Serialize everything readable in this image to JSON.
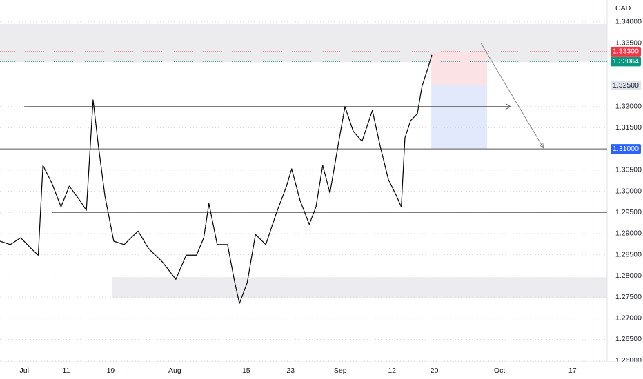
{
  "chart_data": {
    "type": "line",
    "currency": "CAD",
    "color": "#000000",
    "x": [
      -4.7,
      -2.7,
      -0.7,
      1.3,
      2.7,
      3.6,
      5.3,
      7.1,
      8.7,
      10.7,
      12,
      13.3,
      14.3,
      15.6,
      17.3,
      19.3,
      22,
      24,
      26.7,
      29.3,
      31.3,
      33.3,
      34.7,
      35.7,
      37.3,
      39.3,
      40.7,
      41.6,
      43.1,
      44.7,
      46.7,
      48.7,
      50.7,
      51.7,
      53.3,
      55.1,
      56.4,
      57.7,
      59.1,
      60.7,
      62,
      63.6,
      65.3,
      67.3,
      68.9,
      70.4,
      72,
      72.9,
      73.6,
      74.7,
      76,
      76.9,
      78,
      78.8
    ],
    "values": [
      1.2882,
      1.2874,
      1.289,
      1.2865,
      1.2849,
      1.3061,
      1.302,
      1.2963,
      1.3012,
      1.2979,
      1.2955,
      1.3216,
      1.311,
      1.2988,
      1.2882,
      1.2874,
      1.2906,
      1.2865,
      1.2833,
      1.2792,
      1.2849,
      1.2849,
      1.289,
      1.2971,
      1.2874,
      1.2874,
      1.2784,
      1.2735,
      1.2784,
      1.2898,
      1.2874,
      1.2947,
      1.3012,
      1.3053,
      1.2979,
      1.2922,
      1.2963,
      1.3061,
      1.2996,
      1.311,
      1.32,
      1.3142,
      1.3118,
      1.3191,
      1.3102,
      1.3028,
      1.2988,
      1.2963,
      1.3126,
      1.3167,
      1.3183,
      1.3248,
      1.3289,
      1.3322
    ],
    "xlim": [
      -4.7,
      112.7
    ],
    "ylim": [
      1.2597,
      1.3452
    ],
    "xticks": [
      {
        "value": 0,
        "label": "Jul"
      },
      {
        "value": 8.1,
        "label": "11"
      },
      {
        "value": 16.7,
        "label": "19"
      },
      {
        "value": 29.1,
        "label": "Aug"
      },
      {
        "value": 42.9,
        "label": "15"
      },
      {
        "value": 51.5,
        "label": "23"
      },
      {
        "value": 61.1,
        "label": "Sep"
      },
      {
        "value": 71.1,
        "label": "12"
      },
      {
        "value": 79.3,
        "label": "20"
      },
      {
        "value": 91.9,
        "label": "Oct"
      },
      {
        "value": 106,
        "label": "17"
      }
    ],
    "yticks": [
      {
        "value": 1.34,
        "label": "1.34000"
      },
      {
        "value": 1.335,
        "label": "1.33500"
      },
      {
        "value": 1.32,
        "label": "1.32000"
      },
      {
        "value": 1.315,
        "label": "1.31500"
      },
      {
        "value": 1.305,
        "label": "1.30500"
      },
      {
        "value": 1.3,
        "label": "1.30000"
      },
      {
        "value": 1.295,
        "label": "1.29500"
      },
      {
        "value": 1.29,
        "label": "1.29000"
      },
      {
        "value": 1.285,
        "label": "1.28500"
      },
      {
        "value": 1.28,
        "label": "1.28000"
      },
      {
        "value": 1.275,
        "label": "1.27500"
      },
      {
        "value": 1.27,
        "label": "1.27000"
      },
      {
        "value": 1.265,
        "label": "1.26500"
      },
      {
        "value": 1.26,
        "label": "1.26000"
      }
    ],
    "grid": true,
    "price_labels": [
      {
        "value": 1.333,
        "label": "1.33300",
        "color": "#f23645",
        "text_color": "#ffffff"
      },
      {
        "value": 1.33064,
        "label": "1.33064",
        "color": "#089981",
        "text_color": "#ffffff"
      },
      {
        "value": 1.325,
        "label": "1.32500",
        "color": "#e0e3eb",
        "text_color": "#131722"
      },
      {
        "value": 1.31,
        "label": "1.31000",
        "color": "#2962ff",
        "text_color": "#ffffff"
      }
    ],
    "zones": [
      {
        "y": [
          1.3305,
          1.3395
        ],
        "x": [
          -4.7,
          112.7
        ],
        "color": "#ececef"
      },
      {
        "y": [
          1.2748,
          1.2797
        ],
        "x": [
          16.9,
          112.7
        ],
        "color": "#ececef"
      },
      {
        "y": [
          1.325,
          1.333
        ],
        "x": [
          78.7,
          89.5
        ],
        "color": "#fbe3e5"
      },
      {
        "y": [
          1.31,
          1.325
        ],
        "x": [
          78.7,
          89.5
        ],
        "color": "#e3e9fc"
      }
    ],
    "hlines": [
      {
        "y": 1.31,
        "x": [
          -4.7,
          112.7
        ],
        "color": "#555555",
        "arrow": false
      },
      {
        "y": 1.32,
        "x": [
          0,
          94
        ],
        "color": "#555555",
        "arrow": true
      },
      {
        "y": 1.295,
        "x": [
          5.3,
          112.7
        ],
        "color": "#555555",
        "arrow": false
      }
    ],
    "arrows": [
      {
        "x": [
          88.3,
          100.4
        ],
        "y": [
          1.335,
          1.3102
        ],
        "color": "#888888"
      }
    ]
  }
}
